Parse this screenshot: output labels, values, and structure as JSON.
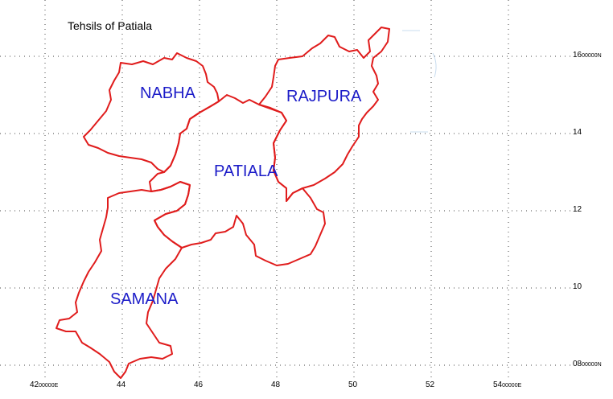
{
  "title": "Tehsils of Patiala",
  "colors": {
    "boundary": "#e01c1c",
    "label": "#1c1cc8",
    "grid": "#444444",
    "background": "#ffffff"
  },
  "tehsils": [
    {
      "id": "nabha",
      "name": "NABHA"
    },
    {
      "id": "rajpura",
      "name": "RAJPURA"
    },
    {
      "id": "patiala",
      "name": "PATIALA"
    },
    {
      "id": "samana",
      "name": "SAMANA"
    }
  ],
  "x_ticks": [
    {
      "main": "42",
      "sub": "00000E"
    },
    {
      "main": "44",
      "sub": ""
    },
    {
      "main": "46",
      "sub": ""
    },
    {
      "main": "48",
      "sub": ""
    },
    {
      "main": "50",
      "sub": ""
    },
    {
      "main": "52",
      "sub": ""
    },
    {
      "main": "54",
      "sub": "00000E"
    }
  ],
  "y_ticks": [
    {
      "main": "16",
      "sub": "00000N"
    },
    {
      "main": "14",
      "sub": ""
    },
    {
      "main": "12",
      "sub": ""
    },
    {
      "main": "10",
      "sub": ""
    },
    {
      "main": "08",
      "sub": "00000N"
    }
  ]
}
